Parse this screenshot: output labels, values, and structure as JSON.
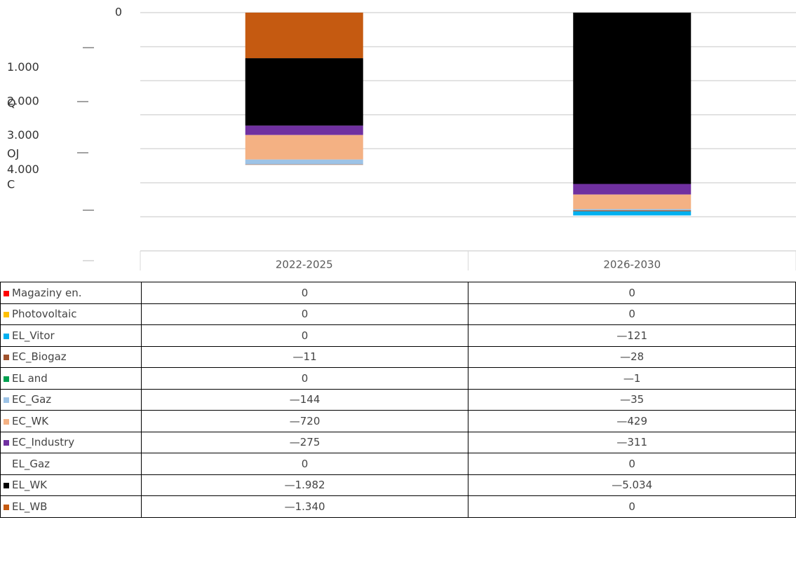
{
  "chart_data": {
    "type": "stacked_bar",
    "categories": [
      "2022-2025",
      "2026-2030"
    ],
    "ylim": [
      -7000,
      0
    ],
    "yticks": [
      0,
      {
        "value": -1000,
        "label": "1.000"
      },
      {
        "value": -2000,
        "label": "2.000"
      },
      {
        "value": -3000,
        "label": "3.000"
      },
      {
        "value": -4000,
        "label": "4.000"
      },
      {
        "value": -5000,
        "label": null
      },
      {
        "value": -6000,
        "label": null
      },
      {
        "value": -7000,
        "label": null
      }
    ],
    "y_axis_fragments": [
      "Q",
      "OJ",
      "C"
    ],
    "grid": true,
    "series": [
      {
        "name": "Magaziny en.",
        "color": "#ff0000",
        "values": [
          0,
          0
        ],
        "value_labels": [
          "0",
          "0"
        ]
      },
      {
        "name": "Photovoltaic",
        "color": "#ffc000",
        "values": [
          0,
          0
        ],
        "value_labels": [
          "0",
          "0"
        ]
      },
      {
        "name": "EL_Vitor",
        "color": "#00b0f0",
        "values": [
          0,
          -121
        ],
        "value_labels": [
          "0",
          "—121"
        ]
      },
      {
        "name": "EC_Biogaz",
        "color": "#a0522d",
        "values": [
          -11,
          -28
        ],
        "value_labels": [
          "—11",
          "—28"
        ]
      },
      {
        "name": "EL and",
        "color": "#00a050",
        "values": [
          0,
          -1
        ],
        "value_labels": [
          "0",
          "—1"
        ]
      },
      {
        "name": "EC_Gaz",
        "color": "#9dc3e6",
        "values": [
          -144,
          -35
        ],
        "value_labels": [
          "—144",
          "—35"
        ]
      },
      {
        "name": "EC_WK",
        "color": "#f4b183",
        "values": [
          -720,
          -429
        ],
        "value_labels": [
          "—720",
          "—429"
        ]
      },
      {
        "name": "EC_Industry",
        "color": "#7030a0",
        "values": [
          -275,
          -311
        ],
        "value_labels": [
          "—275",
          "—311"
        ]
      },
      {
        "name": "EL_Gaz",
        "color": "#ffffff",
        "values": [
          0,
          0
        ],
        "value_labels": [
          "0",
          "0"
        ]
      },
      {
        "name": "EL_WK",
        "color": "#000000",
        "values": [
          -1982,
          -5034
        ],
        "value_labels": [
          "—1.982",
          "—5.034"
        ]
      },
      {
        "name": "EL_WB",
        "color": "#c55a11",
        "values": [
          -1340,
          0
        ],
        "value_labels": [
          "—1.340",
          "0"
        ]
      }
    ]
  }
}
